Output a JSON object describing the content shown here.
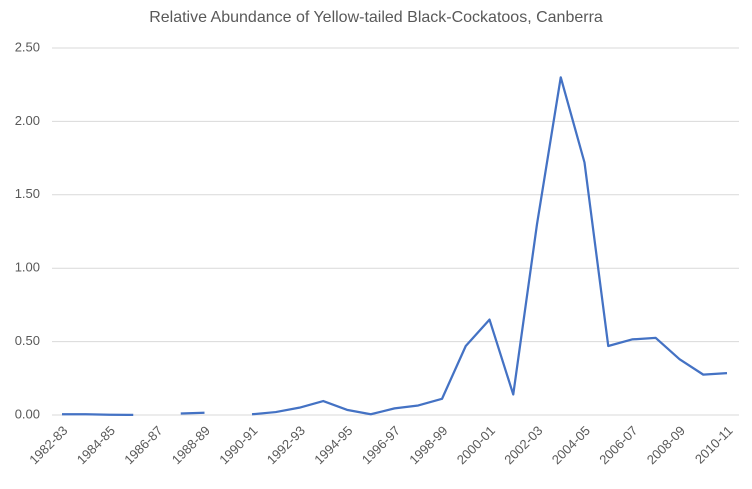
{
  "chart_data": {
    "type": "line",
    "title": "Relative Abundance of Yellow-tailed Black-Cockatoos, Canberra",
    "categories": [
      "1982-83",
      null,
      "1984-85",
      null,
      "1986-87",
      null,
      "1988-89",
      null,
      "1990-91",
      null,
      "1992-93",
      null,
      "1994-95",
      null,
      "1996-97",
      null,
      "1998-99",
      null,
      "2000-01",
      null,
      "2002-03",
      null,
      "2004-05",
      null,
      "2006-07",
      null,
      "2008-09",
      null,
      "2010-11"
    ],
    "series": [
      {
        "color": "#4472c4",
        "values": [
          0.005,
          0.005,
          0.002,
          0.001,
          null,
          0.01,
          0.015,
          null,
          0.005,
          0.02,
          0.05,
          0.095,
          0.035,
          0.005,
          0.045,
          0.065,
          0.11,
          0.47,
          0.65,
          0.14,
          1.3,
          2.3,
          1.72,
          0.47,
          0.515,
          0.525,
          0.38,
          0.275,
          0.285
        ]
      }
    ],
    "ylim": [
      0,
      2.5
    ],
    "yticks": [
      {
        "value": 0,
        "label": "0.00"
      },
      {
        "value": 0.5,
        "label": "0.50"
      },
      {
        "value": 1,
        "label": "1.00"
      },
      {
        "value": 1.5,
        "label": "1.50"
      },
      {
        "value": 2,
        "label": "2.00"
      },
      {
        "value": 2.5,
        "label": "2.50"
      }
    ],
    "grid": true
  }
}
